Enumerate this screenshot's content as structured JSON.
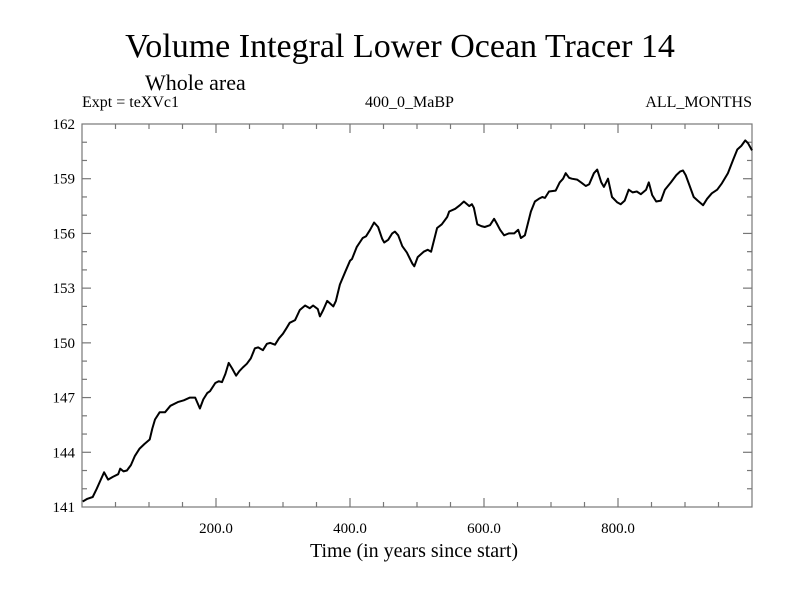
{
  "chart_data": {
    "type": "line",
    "title": "Volume Integral Lower Ocean Tracer 14",
    "subtitle": "Whole area",
    "annotations": {
      "left": "Expt = teXVc1",
      "center": "400_0_MaBP",
      "right": "ALL_MONTHS"
    },
    "xlabel": "Time (in years since start)",
    "ylabel": "",
    "xlim": [
      0,
      1000
    ],
    "ylim": [
      141,
      162
    ],
    "x_major_ticks": [
      200,
      400,
      600,
      800
    ],
    "x_tick_labels": [
      "200.0",
      "400.0",
      "600.0",
      "800.0"
    ],
    "x_minor_step": 50,
    "y_major_ticks": [
      141,
      144,
      147,
      150,
      153,
      156,
      159,
      162
    ],
    "y_tick_labels": [
      "141",
      "144",
      "147",
      "150",
      "153",
      "156",
      "159",
      "162"
    ],
    "y_minor_step": 1,
    "grid": false,
    "line_color": "#000000",
    "axis_color": "#777777",
    "series": [
      {
        "name": "Volume Integral Lower Ocean Tracer 14",
        "x": [
          1,
          8,
          16,
          22,
          28,
          33,
          39,
          46,
          54,
          57,
          62,
          67,
          73,
          79,
          86,
          93,
          101,
          105,
          109,
          116,
          124,
          132,
          143,
          152,
          161,
          169,
          176,
          181,
          187,
          191,
          199,
          204,
          209,
          214,
          219,
          224,
          230,
          235,
          240,
          246,
          252,
          258,
          263,
          270,
          276,
          281,
          288,
          294,
          300,
          305,
          310,
          318,
          325,
          333,
          340,
          345,
          352,
          355,
          360,
          366,
          375,
          379,
          385,
          393,
          400,
          403,
          410,
          419,
          424,
          430,
          436,
          442,
          448,
          451,
          457,
          463,
          467,
          472,
          478,
          485,
          493,
          496,
          501,
          510,
          516,
          521,
          530,
          537,
          545,
          548,
          557,
          564,
          570,
          578,
          582,
          585,
          590,
          596,
          601,
          609,
          615,
          619,
          624,
          630,
          637,
          645,
          651,
          655,
          661,
          670,
          676,
          682,
          687,
          691,
          697,
          707,
          713,
          718,
          722,
          727,
          731,
          739,
          745,
          752,
          757,
          764,
          769,
          775,
          779,
          785,
          791,
          799,
          804,
          810,
          816,
          822,
          828,
          834,
          842,
          846,
          851,
          857,
          864,
          870,
          879,
          887,
          893,
          897,
          901,
          907,
          913,
          919,
          927,
          933,
          940,
          948,
          955,
          964,
          972,
          978,
          984,
          990,
          994,
          1000
        ],
        "y": [
          141.3,
          141.45,
          141.55,
          142.0,
          142.5,
          142.9,
          142.5,
          142.65,
          142.8,
          143.1,
          142.95,
          143.0,
          143.3,
          143.8,
          144.2,
          144.45,
          144.7,
          145.3,
          145.8,
          146.2,
          146.2,
          146.55,
          146.75,
          146.85,
          147.0,
          147.0,
          146.4,
          146.9,
          147.25,
          147.35,
          147.8,
          147.9,
          147.85,
          148.3,
          148.9,
          148.6,
          148.2,
          148.45,
          148.65,
          148.85,
          149.15,
          149.7,
          149.75,
          149.6,
          149.95,
          150.0,
          149.9,
          150.25,
          150.5,
          150.8,
          151.1,
          151.25,
          151.8,
          152.05,
          151.9,
          152.05,
          151.85,
          151.45,
          151.8,
          152.3,
          152.0,
          152.3,
          153.2,
          153.9,
          154.5,
          154.6,
          155.25,
          155.75,
          155.85,
          156.2,
          156.6,
          156.35,
          155.7,
          155.5,
          155.65,
          156.0,
          156.1,
          155.9,
          155.3,
          154.95,
          154.35,
          154.2,
          154.7,
          155.0,
          155.1,
          155.0,
          156.3,
          156.5,
          156.9,
          157.2,
          157.35,
          157.55,
          157.75,
          157.5,
          157.6,
          157.4,
          156.5,
          156.4,
          156.35,
          156.45,
          156.8,
          156.55,
          156.2,
          155.9,
          156.0,
          156.0,
          156.2,
          155.75,
          155.9,
          157.2,
          157.75,
          157.9,
          158.0,
          157.95,
          158.3,
          158.35,
          158.8,
          159.0,
          159.3,
          159.05,
          159.0,
          158.95,
          158.8,
          158.6,
          158.7,
          159.3,
          159.5,
          158.8,
          158.55,
          159.0,
          158.0,
          157.7,
          157.6,
          157.8,
          158.4,
          158.25,
          158.3,
          158.15,
          158.4,
          158.8,
          158.1,
          157.75,
          157.8,
          158.4,
          158.8,
          159.2,
          159.4,
          159.45,
          159.2,
          158.6,
          158.0,
          157.8,
          157.55,
          157.9,
          158.2,
          158.4,
          158.75,
          159.3,
          160.05,
          160.6,
          160.8,
          161.1,
          160.95,
          160.55
        ]
      }
    ]
  }
}
